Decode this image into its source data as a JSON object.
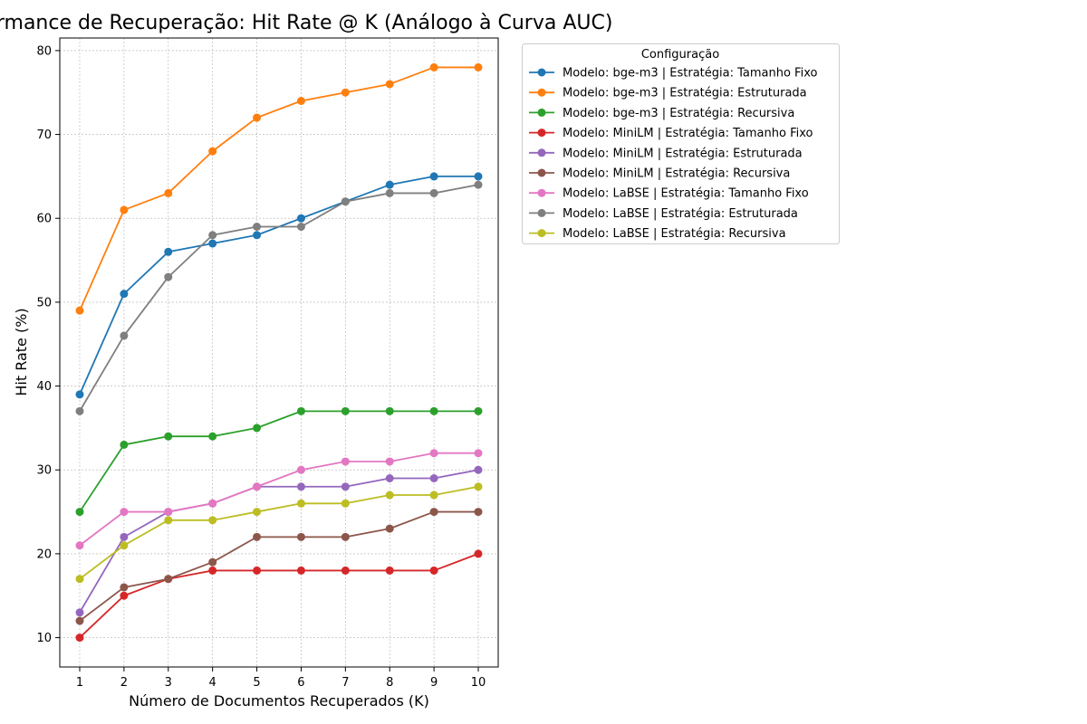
{
  "chart_data": {
    "type": "line",
    "title": "Performance de Recuperação: Hit Rate @ K (Análogo à Curva AUC)",
    "xlabel": "Número de Documentos Recuperados (K)",
    "ylabel": "Hit Rate (%)",
    "x": [
      1,
      2,
      3,
      4,
      5,
      6,
      7,
      8,
      9,
      10
    ],
    "xlim": [
      0.55,
      10.45
    ],
    "ylim": [
      6.5,
      81.5
    ],
    "yticks": [
      10,
      20,
      30,
      40,
      50,
      60,
      70,
      80
    ],
    "grid": true,
    "legend_position": "outside-right",
    "legend_title": "Configuração",
    "series": [
      {
        "name": "Modelo: bge-m3 | Estratégia: Tamanho Fixo",
        "color": "#1f77b4",
        "values": [
          39,
          51,
          56,
          57,
          58,
          60,
          62,
          64,
          65,
          65
        ]
      },
      {
        "name": "Modelo: bge-m3 | Estratégia: Estruturada",
        "color": "#ff7f0e",
        "values": [
          49,
          61,
          63,
          68,
          72,
          74,
          75,
          76,
          78,
          78
        ]
      },
      {
        "name": "Modelo: bge-m3 | Estratégia: Recursiva",
        "color": "#2ca02c",
        "values": [
          25,
          33,
          34,
          34,
          35,
          37,
          37,
          37,
          37,
          37
        ]
      },
      {
        "name": "Modelo: MiniLM | Estratégia: Tamanho Fixo",
        "color": "#d62728",
        "values": [
          10,
          15,
          17,
          18,
          18,
          18,
          18,
          18,
          18,
          20
        ]
      },
      {
        "name": "Modelo: MiniLM | Estratégia: Estruturada",
        "color": "#9467bd",
        "values": [
          13,
          22,
          25,
          26,
          28,
          28,
          28,
          29,
          29,
          30
        ]
      },
      {
        "name": "Modelo: MiniLM | Estratégia: Recursiva",
        "color": "#8c564b",
        "values": [
          12,
          16,
          17,
          19,
          22,
          22,
          22,
          23,
          25,
          25
        ]
      },
      {
        "name": "Modelo: LaBSE | Estratégia: Tamanho Fixo",
        "color": "#e377c2",
        "values": [
          21,
          25,
          25,
          26,
          28,
          30,
          31,
          31,
          32,
          32
        ]
      },
      {
        "name": "Modelo: LaBSE | Estratégia: Estruturada",
        "color": "#7f7f7f",
        "values": [
          37,
          46,
          53,
          58,
          59,
          59,
          62,
          63,
          63,
          64
        ]
      },
      {
        "name": "Modelo: LaBSE | Estratégia: Recursiva",
        "color": "#bcbd22",
        "values": [
          17,
          21,
          24,
          24,
          25,
          26,
          26,
          27,
          27,
          28
        ]
      }
    ]
  }
}
